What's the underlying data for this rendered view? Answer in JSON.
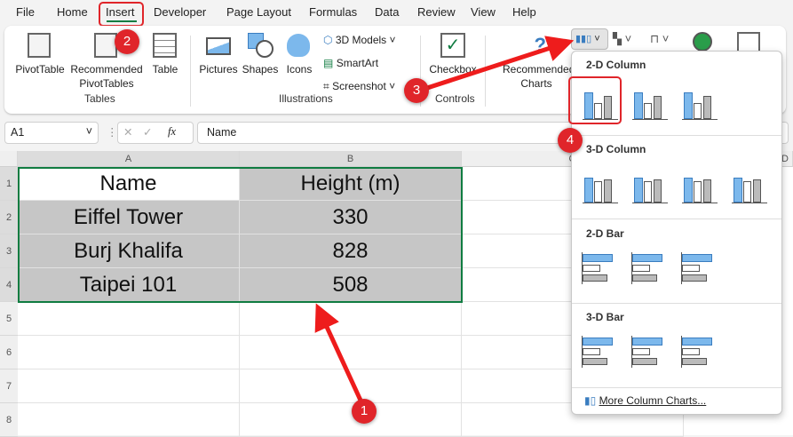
{
  "menu": {
    "tabs": [
      "File",
      "Home",
      "Insert",
      "Developer",
      "Page Layout",
      "Formulas",
      "Data",
      "Review",
      "View",
      "Help"
    ],
    "active": "Insert"
  },
  "ribbon": {
    "tables": {
      "pivot": "PivotTable",
      "recommended": "Recommended",
      "recommended2": "PivotTables",
      "table": "Table",
      "group": "Tables"
    },
    "illustrations": {
      "pictures": "Pictures",
      "shapes": "Shapes",
      "icons": "Icons",
      "models": "3D Models",
      "smartart": "SmartArt",
      "screenshot": "Screenshot",
      "group": "Illustrations"
    },
    "controls": {
      "checkbox": "Checkbox",
      "group": "Controls"
    },
    "charts": {
      "recommended": "Recommended",
      "recommended2": "Charts"
    }
  },
  "formula_bar": {
    "name_box": "A1",
    "fx": "fx",
    "value": "Name"
  },
  "columns": [
    "A",
    "B",
    "C",
    "D"
  ],
  "rows": [
    "1",
    "2",
    "3",
    "4",
    "5",
    "6",
    "7",
    "8"
  ],
  "table": [
    [
      "Name",
      "Height (m)"
    ],
    [
      "Eiffel Tower",
      "330"
    ],
    [
      "Burj Khalifa",
      "828"
    ],
    [
      "Taipei 101",
      "508"
    ]
  ],
  "dropdown": {
    "sections": [
      "2-D Column",
      "3-D Column",
      "2-D Bar",
      "3-D Bar"
    ],
    "more": "More Column Charts..."
  },
  "annotations": [
    "1",
    "2",
    "3",
    "4"
  ],
  "colors": {
    "accent": "#107c41",
    "highlight": "#e0252a",
    "chart_blue": "#7cb8ec"
  }
}
